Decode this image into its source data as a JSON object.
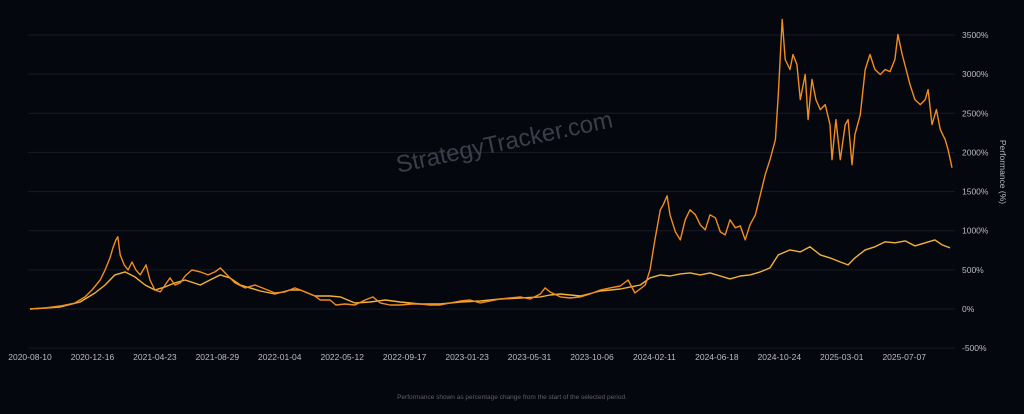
{
  "chart_data": {
    "type": "line",
    "title": "",
    "watermark": "StrategyTracker.com",
    "xlabel": "",
    "ylabel": "Performance (%)",
    "footnote": "Performance shown as percentage change from the start of the selected period.",
    "x_unit": "days since 2020-08-10",
    "x_ticks": [
      {
        "day": 0,
        "label": "2020-08-10"
      },
      {
        "day": 128,
        "label": "2020-12-16"
      },
      {
        "day": 256,
        "label": "2021-04-23"
      },
      {
        "day": 384,
        "label": "2021-08-29"
      },
      {
        "day": 512,
        "label": "2022-01-04"
      },
      {
        "day": 640,
        "label": "2022-05-12"
      },
      {
        "day": 768,
        "label": "2022-09-17"
      },
      {
        "day": 896,
        "label": "2023-01-23"
      },
      {
        "day": 1024,
        "label": "2023-05-31"
      },
      {
        "day": 1152,
        "label": "2023-10-06"
      },
      {
        "day": 1280,
        "label": "2024-02-11"
      },
      {
        "day": 1408,
        "label": "2024-06-18"
      },
      {
        "day": 1536,
        "label": "2024-10-24"
      },
      {
        "day": 1664,
        "label": "2025-03-01"
      },
      {
        "day": 1792,
        "label": "2025-07-07"
      }
    ],
    "y_ticks": [
      {
        "value": 3500,
        "label": "3500%"
      },
      {
        "value": 3000,
        "label": "3000%"
      },
      {
        "value": 2500,
        "label": "2500%"
      },
      {
        "value": 2000,
        "label": "2000%"
      },
      {
        "value": 1500,
        "label": "1500%"
      },
      {
        "value": 1000,
        "label": "1000%"
      },
      {
        "value": 500,
        "label": "500%"
      },
      {
        "value": 0,
        "label": "0%"
      },
      {
        "value": -500,
        "label": "-500%"
      }
    ],
    "ylim": [
      -500,
      3500
    ],
    "xlim": [
      0,
      1890
    ],
    "grid": true,
    "colors": {
      "background": "#05070f",
      "grid": "#181b26",
      "series_a": "#f28c1e",
      "series_b": "#f2b33a"
    },
    "series": [
      {
        "name": "series_a",
        "x": [
          0,
          31,
          62,
          92,
          113,
          127,
          144,
          154,
          164,
          170,
          176,
          180,
          185,
          193,
          201,
          209,
          217,
          226,
          238,
          246,
          256,
          267,
          277,
          287,
          297,
          308,
          318,
          332,
          349,
          365,
          379,
          390,
          406,
          420,
          441,
          461,
          482,
          502,
          523,
          543,
          564,
          584,
          595,
          615,
          627,
          646,
          666,
          687,
          703,
          718,
          738,
          759,
          783,
          800,
          820,
          841,
          861,
          882,
          902,
          923,
          943,
          964,
          984,
          1005,
          1025,
          1046,
          1056,
          1066,
          1087,
          1107,
          1128,
          1148,
          1169,
          1189,
          1210,
          1226,
          1240,
          1261,
          1271,
          1281,
          1292,
          1298,
          1306,
          1312,
          1323,
          1333,
          1343,
          1353,
          1364,
          1374,
          1384,
          1394,
          1405,
          1415,
          1425,
          1435,
          1446,
          1456,
          1466,
          1476,
          1487,
          1497,
          1507,
          1517,
          1528,
          1534,
          1542,
          1548,
          1558,
          1564,
          1572,
          1579,
          1589,
          1595,
          1603,
          1611,
          1620,
          1630,
          1640,
          1644,
          1652,
          1661,
          1671,
          1677,
          1685,
          1691,
          1702,
          1712,
          1722,
          1732,
          1743,
          1753,
          1763,
          1773,
          1779,
          1788,
          1796,
          1804,
          1814,
          1825,
          1835,
          1841,
          1849,
          1858,
          1866,
          1876,
          1882,
          1890
        ],
        "values": [
          0,
          13,
          38,
          77,
          154,
          243,
          371,
          499,
          653,
          781,
          883,
          922,
          691,
          563,
          499,
          601,
          499,
          435,
          563,
          371,
          243,
          218,
          307,
          397,
          307,
          333,
          422,
          499,
          474,
          435,
          474,
          525,
          422,
          333,
          269,
          307,
          256,
          205,
          218,
          269,
          218,
          166,
          115,
          115,
          51,
          64,
          51,
          115,
          154,
          77,
          51,
          51,
          64,
          64,
          51,
          51,
          77,
          102,
          115,
          77,
          102,
          128,
          141,
          154,
          128,
          192,
          269,
          218,
          154,
          141,
          154,
          192,
          243,
          269,
          294,
          371,
          205,
          307,
          499,
          883,
          1267,
          1331,
          1446,
          1203,
          985,
          883,
          1139,
          1267,
          1203,
          1075,
          1011,
          1203,
          1165,
          985,
          947,
          1139,
          1037,
          1062,
          883,
          1075,
          1203,
          1459,
          1715,
          1907,
          2163,
          2739,
          3699,
          3187,
          3059,
          3251,
          3123,
          2675,
          2995,
          2419,
          2931,
          2675,
          2547,
          2611,
          2355,
          1907,
          2419,
          1907,
          2355,
          2419,
          1843,
          2227,
          2483,
          3059,
          3251,
          3059,
          2995,
          3059,
          3033,
          3187,
          3507,
          3251,
          3059,
          2867,
          2675,
          2611,
          2675,
          2803,
          2355,
          2547,
          2291,
          2163,
          2035,
          1805
        ]
      },
      {
        "name": "series_b",
        "x": [
          0,
          62,
          103,
          133,
          154,
          174,
          195,
          215,
          236,
          256,
          277,
          297,
          318,
          349,
          369,
          390,
          410,
          431,
          451,
          472,
          502,
          533,
          554,
          584,
          615,
          636,
          666,
          697,
          728,
          759,
          800,
          841,
          882,
          923,
          964,
          1005,
          1046,
          1066,
          1087,
          1128,
          1169,
          1210,
          1251,
          1271,
          1292,
          1312,
          1333,
          1353,
          1374,
          1394,
          1415,
          1435,
          1456,
          1476,
          1497,
          1517,
          1534,
          1558,
          1579,
          1599,
          1620,
          1640,
          1661,
          1677,
          1691,
          1712,
          1732,
          1753,
          1773,
          1794,
          1814,
          1835,
          1855,
          1870,
          1886
        ],
        "values": [
          0,
          26,
          90,
          205,
          307,
          435,
          474,
          410,
          307,
          243,
          282,
          333,
          371,
          307,
          371,
          435,
          397,
          307,
          269,
          230,
          192,
          243,
          243,
          166,
          166,
          154,
          77,
          90,
          115,
          90,
          64,
          64,
          90,
          102,
          128,
          141,
          154,
          179,
          192,
          166,
          230,
          256,
          307,
          397,
          435,
          422,
          448,
          461,
          435,
          461,
          422,
          384,
          422,
          435,
          474,
          525,
          691,
          755,
          730,
          794,
          691,
          653,
          601,
          563,
          653,
          755,
          794,
          858,
          845,
          870,
          806,
          845,
          883,
          819,
          781
        ]
      }
    ]
  }
}
